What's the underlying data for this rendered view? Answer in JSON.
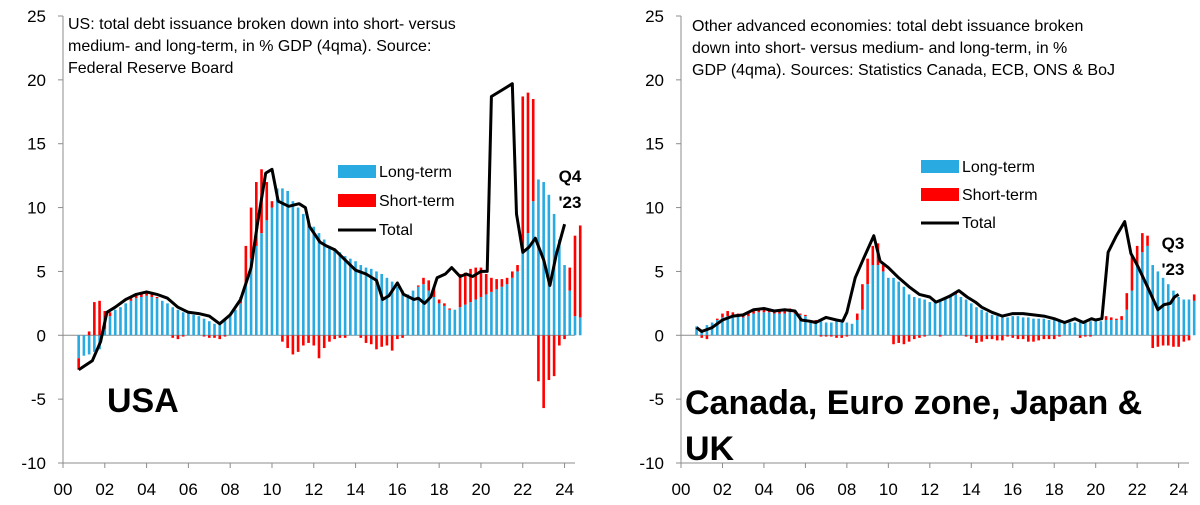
{
  "chart_data": [
    {
      "type": "bar",
      "note_lines": [
        "US: total debt issuance broken down into short- versus",
        "medium- and long-term, in % GDP (4qma). Source:",
        "Federal Reserve Board"
      ],
      "big_label_lines": [
        "USA"
      ],
      "end_label_lines": [
        "Q4",
        "'23"
      ],
      "legend": [
        {
          "label": "Long-term",
          "color": "#29ABE2"
        },
        {
          "label": "Short-term",
          "color": "#FF0000"
        },
        {
          "label": "Total",
          "color": "#000000"
        }
      ],
      "xlim": [
        0,
        24.5
      ],
      "ylim": [
        -10,
        25
      ],
      "y_ticks": [
        25,
        20,
        15,
        10,
        5,
        0,
        -5,
        -10
      ],
      "x_ticks": [
        "00",
        "02",
        "04",
        "06",
        "08",
        "10",
        "12",
        "14",
        "16",
        "18",
        "20",
        "22",
        "24"
      ],
      "x_tick_values": [
        0,
        2,
        4,
        6,
        8,
        10,
        12,
        14,
        16,
        18,
        20,
        22,
        24
      ],
      "start_year": 0.75,
      "step": 0.25,
      "long_term": [
        -1.8,
        -1.6,
        -1.5,
        -1.3,
        -1.1,
        0.5,
        1.5,
        2,
        2.2,
        2.5,
        2.7,
        2.9,
        3.0,
        3.1,
        3.0,
        2.9,
        2.7,
        2.5,
        2.2,
        2.0,
        1.8,
        1.7,
        1.6,
        1.5,
        1.3,
        1.1,
        0.9,
        0.8,
        1.2,
        1.5,
        2,
        2.5,
        4,
        6,
        7,
        8,
        9,
        10,
        11.5,
        11.5,
        11.3,
        10.5,
        10,
        9.5,
        9,
        8.5,
        8,
        7.5,
        7,
        6.8,
        6.5,
        6.2,
        6,
        5.8,
        5.5,
        5.3,
        5.2,
        5,
        4.8,
        4.5,
        4.2,
        3.8,
        3.5,
        3.2,
        3.5,
        3.8,
        4,
        3.5,
        3,
        2.5,
        2.3,
        2.0,
        2,
        2.2,
        2.4,
        2.6,
        2.8,
        3,
        3.2,
        3.4,
        3.6,
        3.8,
        4.0,
        4.5,
        5.0,
        6.5,
        8.0,
        10.5,
        12.2,
        12,
        11,
        9.5,
        7.5,
        5.5,
        3.5,
        1.5,
        1.4
      ],
      "short_term": [
        -0.9,
        0,
        0.3,
        2.6,
        2.7,
        1.4,
        0.3,
        0,
        0,
        0,
        0.3,
        0.3,
        0.3,
        0.2,
        0.2,
        0.1,
        0,
        0,
        -0.2,
        -0.3,
        -0.1,
        0,
        0,
        0,
        -0.1,
        -0.2,
        -0.2,
        -0.3,
        -0.1,
        0,
        0,
        0.5,
        3,
        4,
        5,
        5,
        3,
        0.5,
        0,
        -0.5,
        -1,
        -1.5,
        -1.3,
        -0.8,
        -0.6,
        -0.8,
        -1.8,
        -1,
        -0.5,
        -0.3,
        -0.2,
        -0.2,
        0,
        0,
        -0.2,
        -0.6,
        -0.7,
        -1.1,
        -0.9,
        -0.8,
        -1.2,
        -0.3,
        -0.2,
        0,
        0,
        0.1,
        0.5,
        0.8,
        0.8,
        0.3,
        0.2,
        0.1,
        0,
        2.6,
        2.5,
        2.6,
        2.5,
        2.3,
        1.6,
        1.1,
        0.8,
        0.6,
        0.5,
        0.5,
        0.5,
        12.2,
        11,
        8,
        -3.6,
        -5.7,
        -3.5,
        -3.2,
        -0.8,
        -0.3,
        1.8,
        6.3,
        7.2
      ],
      "total": [
        -2.7,
        -1.6,
        -1.2,
        1.3,
        1.6,
        1.9,
        1.8,
        2,
        2.2,
        2.5,
        3.0,
        3.2,
        3.3,
        3.3,
        3.2,
        3.0,
        2.7,
        2.5,
        2.0,
        1.7,
        1.7,
        1.7,
        1.6,
        1.5,
        1.2,
        0.9,
        0.7,
        0.5,
        1.1,
        1.5,
        2,
        3,
        7,
        10,
        12,
        13,
        14.5,
        12,
        11.5,
        11,
        10.3,
        9,
        8.7,
        8.7,
        8.4,
        7.7,
        6.2,
        6.5,
        6.5,
        6.5,
        6.3,
        6,
        6,
        5.8,
        5.3,
        4.7,
        4.5,
        3.9,
        3.9,
        3.7,
        3.0,
        3.5,
        3.3,
        3.2,
        3.5,
        3.9,
        4.5,
        4.3,
        3.8,
        2.8,
        2.5,
        2.1,
        2,
        4.8,
        4.9,
        5.4,
        5.3,
        5.1,
        4.8,
        4.5,
        4.4,
        4.4,
        4.5,
        5.0,
        5.5,
        18.7,
        19,
        18.5,
        8.6,
        6.3,
        7.5,
        6.3,
        6.7,
        5.2,
        3.3,
        7.8,
        8.6
      ],
      "total_line": [
        [
          0.75,
          -2.7
        ],
        [
          1.4,
          -2.0
        ],
        [
          1.8,
          -0.5
        ],
        [
          2.1,
          1.8
        ],
        [
          2.5,
          2.2
        ],
        [
          3,
          2.8
        ],
        [
          3.5,
          3.2
        ],
        [
          4,
          3.4
        ],
        [
          4.5,
          3.2
        ],
        [
          5,
          2.9
        ],
        [
          5.5,
          2.2
        ],
        [
          6,
          1.8
        ],
        [
          6.5,
          1.7
        ],
        [
          7,
          1.5
        ],
        [
          7.5,
          0.9
        ],
        [
          8,
          1.6
        ],
        [
          8.5,
          2.8
        ],
        [
          9,
          5.3
        ],
        [
          9.3,
          8.7
        ],
        [
          9.7,
          12.7
        ],
        [
          10,
          13.0
        ],
        [
          10.3,
          10.5
        ],
        [
          10.8,
          10.1
        ],
        [
          11.3,
          10.3
        ],
        [
          11.6,
          10.0
        ],
        [
          11.8,
          8.5
        ],
        [
          12.3,
          7.3
        ],
        [
          12.6,
          7.0
        ],
        [
          13,
          6.7
        ],
        [
          13.5,
          5.9
        ],
        [
          14,
          5.1
        ],
        [
          14.5,
          4.8
        ],
        [
          15,
          4.3
        ],
        [
          15.3,
          2.8
        ],
        [
          15.6,
          3.1
        ],
        [
          16,
          4.1
        ],
        [
          16.3,
          3.2
        ],
        [
          16.8,
          2.8
        ],
        [
          17,
          2.9
        ],
        [
          17.3,
          2.5
        ],
        [
          17.6,
          3.0
        ],
        [
          17.9,
          4.5
        ],
        [
          18.3,
          4.8
        ],
        [
          18.6,
          5.3
        ],
        [
          19,
          4.6
        ],
        [
          19.3,
          4.8
        ],
        [
          19.6,
          4.6
        ],
        [
          20,
          5.0
        ],
        [
          20.3,
          5.0
        ],
        [
          20.5,
          18.7
        ],
        [
          21,
          19.2
        ],
        [
          21.5,
          19.7
        ],
        [
          21.7,
          9.5
        ],
        [
          22,
          6.5
        ],
        [
          22.3,
          6.9
        ],
        [
          22.6,
          7.6
        ],
        [
          23,
          5.9
        ],
        [
          23.3,
          3.9
        ],
        [
          23.6,
          6.3
        ],
        [
          24,
          8.7
        ]
      ]
    },
    {
      "type": "bar",
      "note_lines": [
        "Other advanced economies: total debt issuance broken",
        "down into short- versus medium- and long-term, in %",
        "GDP (4qma). Sources: Statistics Canada, ECB, ONS & BoJ"
      ],
      "big_label_lines": [
        "Canada, Euro zone, Japan &",
        "UK"
      ],
      "end_label_lines": [
        "Q3",
        "'23"
      ],
      "legend": [
        {
          "label": "Long-term",
          "color": "#29ABE2"
        },
        {
          "label": "Short-term",
          "color": "#FF0000"
        },
        {
          "label": "Total",
          "color": "#000000"
        }
      ],
      "xlim": [
        0,
        24.5
      ],
      "ylim": [
        -10,
        25
      ],
      "y_ticks": [
        25,
        20,
        15,
        10,
        5,
        0,
        -5,
        -10
      ],
      "x_ticks": [
        "00",
        "02",
        "04",
        "06",
        "08",
        "10",
        "12",
        "14",
        "16",
        "18",
        "20",
        "22",
        "24"
      ],
      "x_tick_values": [
        0,
        2,
        4,
        6,
        8,
        10,
        12,
        14,
        16,
        18,
        20,
        22,
        24
      ],
      "start_year": 0.75,
      "step": 0.25,
      "long_term": [
        0.7,
        0.4,
        0.8,
        1.0,
        1.2,
        1.4,
        1.5,
        1.5,
        1.5,
        1.4,
        1.5,
        1.7,
        1.8,
        1.8,
        1.8,
        1.7,
        1.7,
        1.7,
        1.8,
        1.7,
        1.6,
        1.5,
        1.2,
        1.1,
        1.1,
        1.0,
        1.0,
        1.1,
        1.0,
        1.0,
        0.9,
        1.2,
        2.0,
        4.0,
        5.5,
        5.5,
        5.0,
        4.5,
        4.5,
        4.2,
        3.8,
        3.2,
        3.0,
        2.9,
        2.8,
        2.6,
        2.7,
        2.7,
        2.9,
        3.1,
        3.2,
        3.0,
        2.8,
        2.5,
        2.2,
        2.0,
        1.8,
        1.6,
        1.5,
        1.4,
        1.4,
        1.5,
        1.5,
        1.4,
        1.4,
        1.3,
        1.3,
        1.3,
        1.2,
        1.2,
        1.2,
        1.1,
        1.0,
        1.0,
        1.0,
        1.0,
        1.1,
        1.1,
        1.1,
        1.2,
        1.2,
        1.2,
        1.2,
        2.0,
        3.5,
        5.5,
        6.5,
        7.0,
        5.5,
        5.0,
        4.5,
        4.0,
        3.5,
        3.0,
        2.8,
        2.8,
        2.7
      ],
      "short_term": [
        0,
        -0.2,
        -0.3,
        0,
        0.1,
        0.3,
        0.4,
        0.3,
        0.2,
        0.3,
        0.3,
        0.2,
        0.3,
        0.3,
        0.2,
        0.2,
        0.2,
        0.3,
        0.3,
        0.2,
        0.1,
        0.1,
        0,
        0.1,
        -0.1,
        -0.1,
        -0.1,
        -0.2,
        -0.2,
        -0.1,
        0,
        0.5,
        2.0,
        2.0,
        1.5,
        1.7,
        0.5,
        0,
        -0.7,
        -0.6,
        -0.7,
        -0.5,
        -0.3,
        -0.2,
        -0.1,
        0,
        0,
        -0.1,
        0,
        0.1,
        0.2,
        0,
        -0.1,
        -0.3,
        -0.6,
        -0.5,
        -0.3,
        -0.3,
        -0.4,
        -0.4,
        -0.1,
        -0.2,
        -0.3,
        -0.3,
        -0.5,
        -0.5,
        -0.4,
        -0.3,
        -0.3,
        -0.3,
        -0.1,
        0,
        0,
        0,
        -0.2,
        -0.1,
        -0.1,
        0,
        0,
        0.3,
        0.2,
        0.1,
        0.3,
        1.3,
        2.7,
        1.5,
        1.5,
        0.8,
        -1.0,
        -0.9,
        -0.8,
        -0.8,
        -0.9,
        -0.9,
        -0.5,
        -0.4,
        0.5
      ],
      "total": [
        0.7,
        0.2,
        0.5,
        1.0,
        1.3,
        1.7,
        1.9,
        1.8,
        1.7,
        1.7,
        1.8,
        1.9,
        2.1,
        2.1,
        2.0,
        1.9,
        1.9,
        2.0,
        2.1,
        1.9,
        1.7,
        1.6,
        1.2,
        1.2,
        1.0,
        0.9,
        0.9,
        0.9,
        0.8,
        0.9,
        0.9,
        1.7,
        4.0,
        6.0,
        7.0,
        7.2,
        5.5,
        4.5,
        3.8,
        3.6,
        3.1,
        2.7,
        2.7,
        2.7,
        2.7,
        2.6,
        2.7,
        2.6,
        2.9,
        3.2,
        3.4,
        3.0,
        2.7,
        2.2,
        1.6,
        1.5,
        1.5,
        1.3,
        1.1,
        1.0,
        1.3,
        1.3,
        1.2,
        1.1,
        0.9,
        0.8,
        0.9,
        1.0,
        0.9,
        0.9,
        1.1,
        1.1,
        1.0,
        1.0,
        0.8,
        0.9,
        1.0,
        1.1,
        1.1,
        1.5,
        1.4,
        1.3,
        1.5,
        3.3,
        6.2,
        7.0,
        8.0,
        7.8,
        4.5,
        4.1,
        3.7,
        3.2,
        2.6,
        2.1,
        2.3,
        2.4,
        3.2
      ],
      "total_line": [
        [
          0.75,
          0.6
        ],
        [
          1,
          0.3
        ],
        [
          1.5,
          0.6
        ],
        [
          2,
          1.2
        ],
        [
          2.5,
          1.5
        ],
        [
          3,
          1.6
        ],
        [
          3.5,
          2.0
        ],
        [
          4,
          2.1
        ],
        [
          4.5,
          1.9
        ],
        [
          5,
          2.0
        ],
        [
          5.5,
          1.9
        ],
        [
          5.8,
          1.2
        ],
        [
          6.2,
          1.1
        ],
        [
          6.5,
          1.0
        ],
        [
          7,
          1.4
        ],
        [
          7.5,
          1.2
        ],
        [
          7.8,
          1.1
        ],
        [
          8,
          1.8
        ],
        [
          8.4,
          4.5
        ],
        [
          8.8,
          6.0
        ],
        [
          9.3,
          7.8
        ],
        [
          9.6,
          5.8
        ],
        [
          10,
          5.3
        ],
        [
          10.5,
          4.5
        ],
        [
          11,
          3.8
        ],
        [
          11.5,
          3.2
        ],
        [
          12,
          3.0
        ],
        [
          12.3,
          2.6
        ],
        [
          12.6,
          2.8
        ],
        [
          13,
          3.1
        ],
        [
          13.4,
          3.5
        ],
        [
          13.8,
          3.0
        ],
        [
          14.2,
          2.6
        ],
        [
          14.5,
          2.2
        ],
        [
          15,
          1.8
        ],
        [
          15.5,
          1.5
        ],
        [
          16,
          1.7
        ],
        [
          16.5,
          1.7
        ],
        [
          17,
          1.6
        ],
        [
          17.5,
          1.5
        ],
        [
          18,
          1.3
        ],
        [
          18.5,
          1.0
        ],
        [
          19,
          1.3
        ],
        [
          19.4,
          1.0
        ],
        [
          19.8,
          1.3
        ],
        [
          20,
          1.2
        ],
        [
          20.3,
          1.3
        ],
        [
          20.6,
          6.5
        ],
        [
          21,
          7.8
        ],
        [
          21.4,
          8.9
        ],
        [
          21.7,
          6.4
        ],
        [
          22,
          5.5
        ],
        [
          22.5,
          3.8
        ],
        [
          23,
          2.0
        ],
        [
          23.3,
          2.4
        ],
        [
          23.6,
          2.5
        ],
        [
          23.8,
          3.0
        ],
        [
          24,
          3.2
        ]
      ]
    }
  ]
}
